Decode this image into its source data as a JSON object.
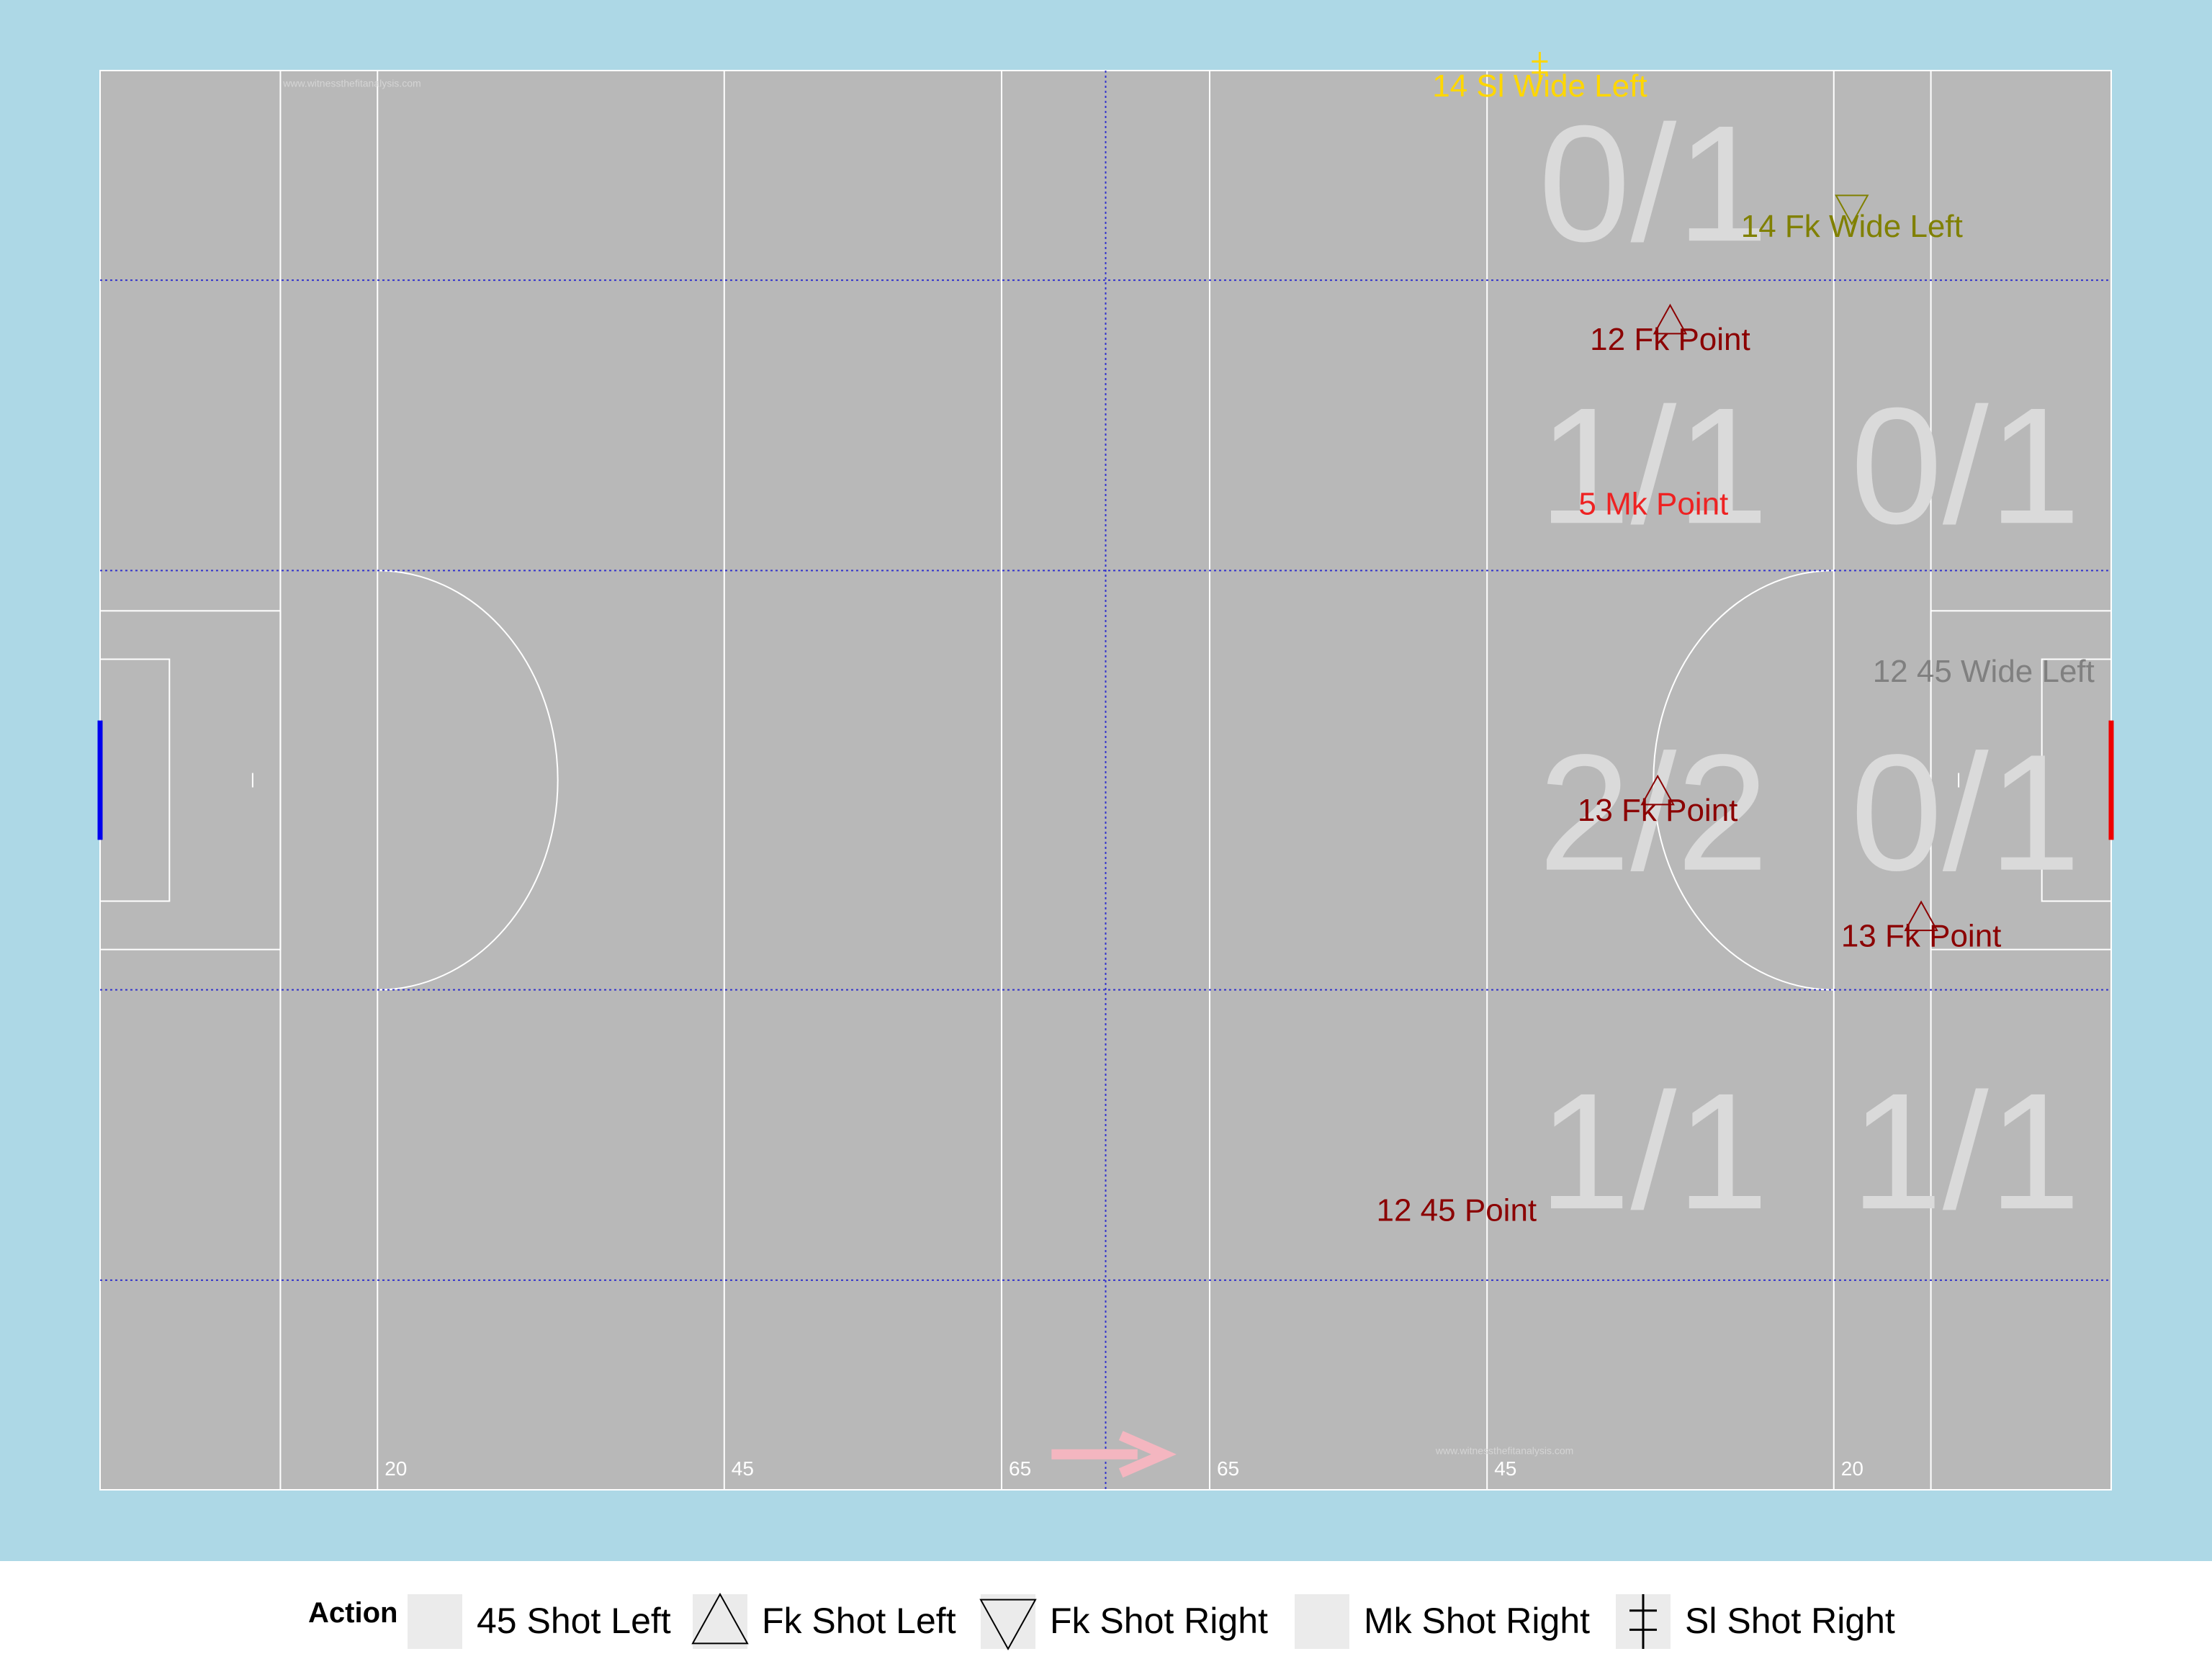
{
  "chart_data": {
    "type": "scatter",
    "title": "",
    "xlabel": "",
    "ylabel": "",
    "colors": {
      "outer_background": "#add8e6",
      "pitch": "#b8b8b8",
      "pitch_lines": "#ffffff",
      "zone_lines": "#3333cc",
      "zone_text": "#dadada",
      "left_goal": "#0000ee",
      "right_goal": "#ee0000",
      "direction_arrow": "#f4b6c0",
      "watermark": "#d4d4d4"
    },
    "pitch": {
      "xlim": [
        0,
        145
      ],
      "ylim": [
        0,
        88
      ],
      "distance_lines": [
        {
          "x": 13,
          "label": ""
        },
        {
          "x": 20,
          "label": "20"
        },
        {
          "x": 45,
          "label": "45"
        },
        {
          "x": 65,
          "label": "65"
        },
        {
          "x": 80,
          "label": "65"
        },
        {
          "x": 100,
          "label": "45"
        },
        {
          "x": 125,
          "label": "20"
        },
        {
          "x": 132,
          "label": ""
        }
      ],
      "halfway_x": 72.5,
      "zone_lines_y": [
        13,
        31,
        57,
        75
      ],
      "watermarks": [
        "www.witnessthefitanalysis.com",
        "www.witnessthefitanalysis.com"
      ]
    },
    "direction": "right",
    "zones": [
      {
        "x": 112,
        "y": 81,
        "text": "0/1"
      },
      {
        "x": 112,
        "y": 63.5,
        "text": "1/1"
      },
      {
        "x": 134.5,
        "y": 63.5,
        "text": "0/1"
      },
      {
        "x": 112,
        "y": 42,
        "text": "2/2"
      },
      {
        "x": 134.5,
        "y": 42,
        "text": "0/1"
      },
      {
        "x": 112,
        "y": 21,
        "text": "1/1"
      },
      {
        "x": 134.5,
        "y": 21,
        "text": "1/1"
      }
    ],
    "points": [
      {
        "x": 103.8,
        "y": 87.1,
        "marker": "sl",
        "label": "14 Sl Wide Left",
        "color": "#ffd700"
      },
      {
        "x": 126.3,
        "y": 78.4,
        "marker": "fk_right",
        "label": "14 Fk Wide Left",
        "color": "#808000"
      },
      {
        "x": 113.2,
        "y": 71.4,
        "marker": "fk_left",
        "label": "12 Fk Point",
        "color": "#8b0000"
      },
      {
        "x": 112,
        "y": 61.2,
        "marker": "mk",
        "label": "5 Mk Point",
        "color": "#ee2222"
      },
      {
        "x": 135.8,
        "y": 50.8,
        "marker": "f45",
        "label": "12 45 Wide Left",
        "color": "#808080"
      },
      {
        "x": 112.3,
        "y": 42.2,
        "marker": "fk_left",
        "label": "13 Fk Point",
        "color": "#8b0000"
      },
      {
        "x": 131.3,
        "y": 34.4,
        "marker": "fk_left",
        "label": "13 Fk Point",
        "color": "#8b0000"
      },
      {
        "x": 97.8,
        "y": 17.4,
        "marker": "f45",
        "label": "12 45 Point",
        "color": "#8b0000"
      }
    ]
  },
  "legend": {
    "title": "Action",
    "items": [
      {
        "marker": "f45",
        "label": "45 Shot Left"
      },
      {
        "marker": "fk_left",
        "label": "Fk Shot Left"
      },
      {
        "marker": "fk_right",
        "label": "Fk Shot Right"
      },
      {
        "marker": "mk",
        "label": "Mk Shot Right"
      },
      {
        "marker": "sl",
        "label": "Sl Shot Right"
      }
    ]
  }
}
